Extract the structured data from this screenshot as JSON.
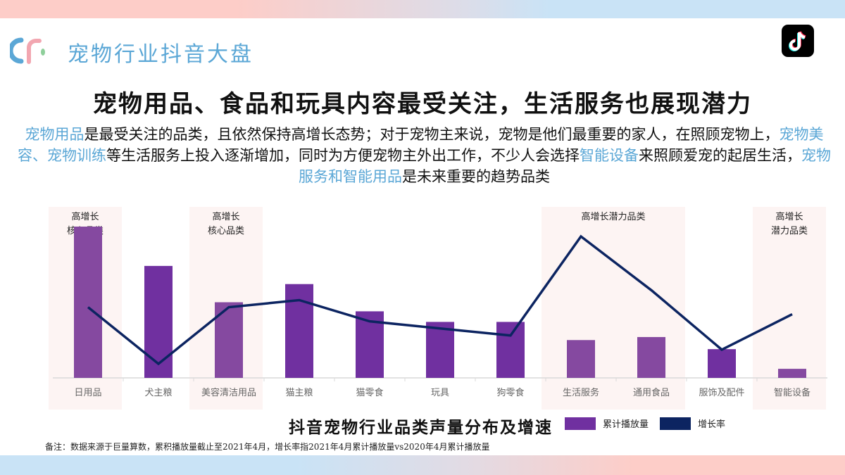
{
  "header": {
    "title": "宠物行业抖音大盘",
    "logo_icon": "cr-logo-icon",
    "app_icon": "tiktok-icon"
  },
  "headline": "宠物用品、食品和玩具内容最受关注，生活服务也展现潜力",
  "summary": {
    "segments": [
      {
        "text": "宠物用品",
        "highlight": true
      },
      {
        "text": "是最受关注的品类，且依然保持高增长态势；对于宠物主来说，宠物是他们最重要的家人，在照顾宠物上，",
        "highlight": false
      },
      {
        "text": "宠物美容、宠物训练",
        "highlight": true
      },
      {
        "text": "等生活服务上投入逐渐增加，同时为方便宠物主外出工作，不少人会选择",
        "highlight": false
      },
      {
        "text": "智能设备",
        "highlight": true
      },
      {
        "text": "来照顾爱宠的起居生活，",
        "highlight": false
      },
      {
        "text": "宠物服务和智能用品",
        "highlight": true
      },
      {
        "text": "是未来重要的趋势品类",
        "highlight": false
      }
    ]
  },
  "colors": {
    "accent_blue": "#5ba7d6",
    "bar_purple": "#7030a0",
    "bar_purple_light": "#8549a0",
    "line_navy": "#0c2461",
    "highlight_band": "#fdf4f3"
  },
  "highlight_bands": [
    {
      "label_lines": [
        "高增长",
        "核心品类"
      ],
      "from": 0,
      "to": 0
    },
    {
      "label_lines": [
        "高增长",
        "核心品类"
      ],
      "from": 2,
      "to": 2
    },
    {
      "label_lines": [
        "高增长潜力品类"
      ],
      "from": 7,
      "to": 8
    },
    {
      "label_lines": [
        "高增长",
        "潜力品类"
      ],
      "from": 10,
      "to": 10
    }
  ],
  "chart_data": {
    "type": "bar",
    "title": "抖音宠物行业品类声量分布及增速",
    "xlabel": "",
    "ylabel": "",
    "categories": [
      "日用品",
      "犬主粮",
      "美容清洁用品",
      "猫主粮",
      "猫零食",
      "玩具",
      "狗零食",
      "生活服务",
      "通用食品",
      "服饰及配件",
      "智能设备"
    ],
    "series": [
      {
        "name": "累计播放量",
        "type": "bar",
        "axis": "left",
        "values": [
          100,
          74,
          50,
          62,
          44,
          37,
          37,
          25,
          27,
          19,
          6
        ]
      },
      {
        "name": "增长率",
        "type": "line",
        "axis": "right",
        "values": [
          50,
          10,
          50,
          55,
          40,
          35,
          30,
          100,
          62,
          20,
          45
        ]
      }
    ],
    "note": "relative values estimated from pixel heights; no axis ticks shown",
    "grid": false,
    "legend_position": "bottom-right"
  },
  "legend": [
    {
      "label": "累计播放量",
      "color": "#7030a0"
    },
    {
      "label": "增长率",
      "color": "#0c2461"
    }
  ],
  "footnote": "备注：数据来源于巨量算数，累积播放量截止至2021年4月，增长率指2021年4月累计播放量vs2020年4月累计播放量"
}
